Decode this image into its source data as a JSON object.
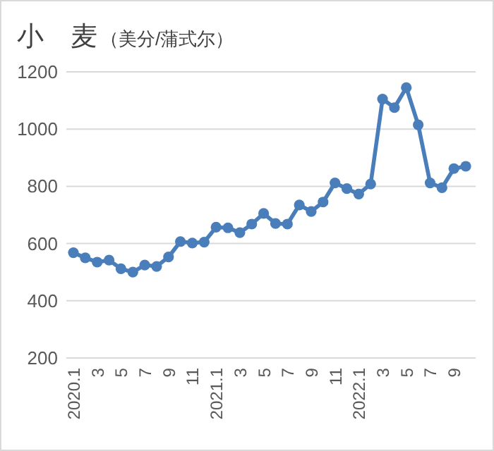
{
  "chart_data": {
    "type": "line",
    "title": "小　麦",
    "subtitle": "（美分/蒲式尔）",
    "categories": [
      "2020.1",
      null,
      "3",
      null,
      "5",
      null,
      "7",
      null,
      "9",
      null,
      "11",
      null,
      "2021.1",
      null,
      "3",
      null,
      "5",
      null,
      "7",
      null,
      "9",
      null,
      "11",
      null,
      "2022.1",
      null,
      "3",
      null,
      "5",
      null,
      "7",
      null,
      "9",
      null
    ],
    "series": [
      {
        "color": "#4a7ebb",
        "values": [
          568,
          550,
          535,
          542,
          512,
          500,
          525,
          520,
          553,
          607,
          602,
          605,
          657,
          655,
          638,
          668,
          705,
          670,
          668,
          735,
          712,
          745,
          812,
          792,
          773,
          808,
          1105,
          1075,
          1145,
          1015,
          812,
          795,
          862,
          870
        ]
      }
    ],
    "ylim": [
      200,
      1200
    ],
    "yticks": [
      200,
      400,
      600,
      800,
      1000,
      1200
    ],
    "grid": "y",
    "marker": "circle",
    "line_style": "solid"
  }
}
